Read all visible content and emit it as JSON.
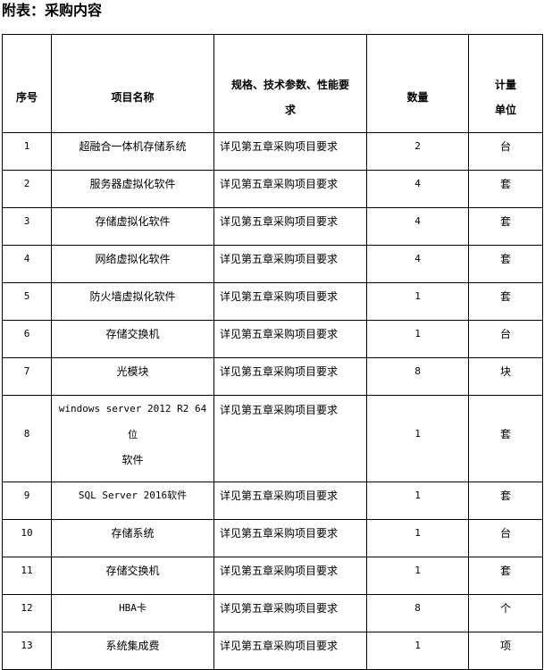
{
  "title": "附表：采购内容",
  "table": {
    "headers": {
      "index": "序号",
      "name": "项目名称",
      "spec_line1": "规格、技术参数、性能要",
      "spec_line2": "求",
      "qty": "数量",
      "unit_line1": "计量",
      "unit_line2": "单位"
    },
    "rows": [
      {
        "index": "1",
        "name": "超融合一体机存储系统",
        "spec": "详见第五章采购项目要求",
        "qty": "2",
        "unit": "台"
      },
      {
        "index": "2",
        "name": "服务器虚拟化软件",
        "spec": "详见第五章采购项目要求",
        "qty": "4",
        "unit": "套"
      },
      {
        "index": "3",
        "name": "存储虚拟化软件",
        "spec": "详见第五章采购项目要求",
        "qty": "4",
        "unit": "套"
      },
      {
        "index": "4",
        "name": "网络虚拟化软件",
        "spec": "详见第五章采购项目要求",
        "qty": "4",
        "unit": "套"
      },
      {
        "index": "5",
        "name": "防火墙虚拟化软件",
        "spec": "详见第五章采购项目要求",
        "qty": "1",
        "unit": "套"
      },
      {
        "index": "6",
        "name": "存储交换机",
        "spec": "详见第五章采购项目要求",
        "qty": "1",
        "unit": "台"
      },
      {
        "index": "7",
        "name": "光模块",
        "spec": "详见第五章采购项目要求",
        "qty": "8",
        "unit": "块"
      },
      {
        "index": "8",
        "name_line1": "windows server 2012 R2 64位",
        "name_line2": "软件",
        "spec": "详见第五章采购项目要求",
        "qty": "1",
        "unit": "套"
      },
      {
        "index": "9",
        "name": "SQL Server 2016软件",
        "spec": "详见第五章采购项目要求",
        "qty": "1",
        "unit": "套"
      },
      {
        "index": "10",
        "name": "存储系统",
        "spec": "详见第五章采购项目要求",
        "qty": "1",
        "unit": "台"
      },
      {
        "index": "11",
        "name": "存储交换机",
        "spec": "详见第五章采购项目要求",
        "qty": "1",
        "unit": "套"
      },
      {
        "index": "12",
        "name": "HBA卡",
        "spec": "详见第五章采购项目要求",
        "qty": "8",
        "unit": "个"
      },
      {
        "index": "13",
        "name": "系统集成费",
        "spec": "详见第五章采购项目要求",
        "qty": "1",
        "unit": "项"
      }
    ]
  }
}
